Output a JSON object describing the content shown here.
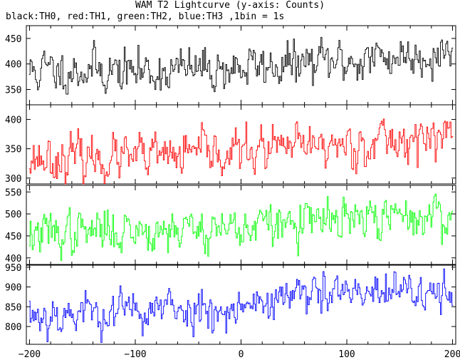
{
  "title": "WAM T2 Lightcurve (y-axis: Counts)",
  "subtitle": "black:TH0, red:TH1, green:TH2, blue:TH3 ,1bin = 1s",
  "chart_data": {
    "type": "line",
    "x_axis": {
      "range": [
        -203,
        203
      ],
      "ticks": [
        -200,
        -100,
        0,
        100,
        200
      ],
      "tick_labels": [
        "−200",
        "−100",
        "0",
        "100",
        "200"
      ]
    },
    "x_start": -200,
    "x_end": 200,
    "x_step": 1,
    "panels": [
      {
        "name": "TH0",
        "color": "#000000",
        "ylim": [
          320,
          475
        ],
        "yticks": [
          350,
          400,
          450
        ],
        "trend": [
          [
            -200,
            385
          ],
          [
            -150,
            390
          ],
          [
            -100,
            385
          ],
          [
            0,
            392
          ],
          [
            100,
            405
          ],
          [
            200,
            425
          ]
        ],
        "noise": 22,
        "seed": 11
      },
      {
        "name": "TH1",
        "color": "#ff0000",
        "ylim": [
          290,
          425
        ],
        "yticks": [
          300,
          350,
          400
        ],
        "trend": [
          [
            -200,
            335
          ],
          [
            -100,
            333
          ],
          [
            0,
            345
          ],
          [
            100,
            358
          ],
          [
            200,
            372
          ]
        ],
        "noise": 19,
        "seed": 23
      },
      {
        "name": "TH2",
        "color": "#00ff00",
        "ylim": [
          385,
          565
        ],
        "yticks": [
          400,
          450,
          500,
          550
        ],
        "trend": [
          [
            -200,
            452
          ],
          [
            -100,
            465
          ],
          [
            0,
            470
          ],
          [
            100,
            485
          ],
          [
            200,
            497
          ]
        ],
        "noise": 25,
        "seed": 37
      },
      {
        "name": "TH3",
        "color": "#0000ff",
        "ylim": [
          755,
          955
        ],
        "yticks": [
          800,
          850,
          900,
          950
        ],
        "trend": [
          [
            -200,
            830
          ],
          [
            -100,
            840
          ],
          [
            0,
            850
          ],
          [
            40,
            875
          ],
          [
            100,
            880
          ],
          [
            200,
            885
          ]
        ],
        "noise": 27,
        "seed": 53
      }
    ]
  }
}
